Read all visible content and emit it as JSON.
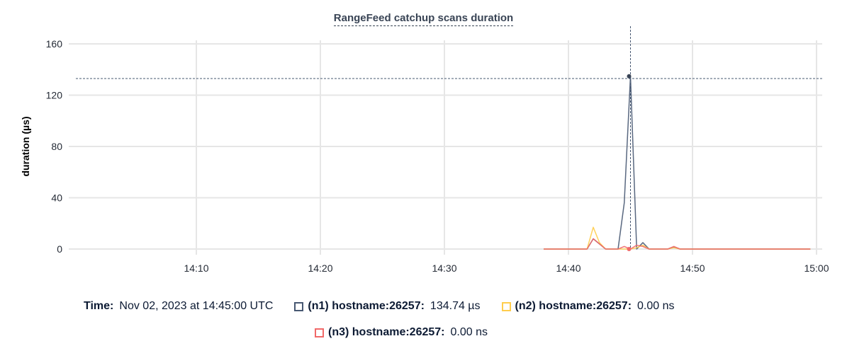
{
  "chart_data": {
    "type": "line",
    "title": "RangeFeed catchup scans duration",
    "ylabel": "duration (µs)",
    "xlabel": "",
    "xlim": [
      "14:00",
      "15:00"
    ],
    "ylim": [
      0,
      160
    ],
    "yticks": [
      "0",
      "40",
      "80",
      "120",
      "160"
    ],
    "xticks": [
      "14:10",
      "14:20",
      "14:30",
      "14:40",
      "14:50",
      "15:00"
    ],
    "grid": true,
    "x": [
      "14:38:00",
      "14:38:30",
      "14:39:00",
      "14:39:30",
      "14:40:00",
      "14:40:30",
      "14:41:00",
      "14:41:30",
      "14:42:00",
      "14:42:30",
      "14:43:00",
      "14:43:30",
      "14:44:00",
      "14:44:30",
      "14:45:00",
      "14:45:30",
      "14:46:00",
      "14:46:30",
      "14:47:00",
      "14:47:30",
      "14:48:00",
      "14:48:30",
      "14:49:00",
      "14:49:30",
      "14:50:00",
      "14:50:30",
      "14:51:00",
      "14:51:30",
      "14:52:00",
      "14:52:30",
      "14:53:00",
      "14:53:30",
      "14:54:00",
      "14:54:30",
      "14:55:00",
      "14:55:30",
      "14:56:00",
      "14:56:30",
      "14:57:00",
      "14:57:30",
      "14:58:00",
      "14:58:30",
      "14:59:00",
      "14:59:30"
    ],
    "series": [
      {
        "name": "(n1) hostname:26257",
        "color": "#475872",
        "values": [
          0,
          0,
          0,
          0,
          0,
          0,
          0,
          0,
          8,
          4,
          0,
          0,
          0,
          36,
          134.74,
          0,
          5,
          0,
          0,
          0,
          0,
          1.5,
          0,
          0,
          0,
          0,
          0,
          0,
          0,
          0,
          0,
          0,
          0,
          0,
          0,
          0,
          0,
          0,
          0,
          0,
          0,
          0,
          0,
          0
        ]
      },
      {
        "name": "(n2) hostname:26257",
        "color": "#ffcd4d",
        "values": [
          0,
          0,
          0,
          0,
          0,
          0,
          0,
          0,
          17,
          5,
          0,
          0,
          0,
          0,
          0,
          1,
          3,
          0,
          0,
          0,
          0,
          1,
          0,
          0,
          0,
          0,
          0,
          0,
          0,
          0,
          0,
          0,
          0,
          0,
          0,
          0,
          0,
          0,
          0,
          0,
          0,
          0,
          0,
          0
        ]
      },
      {
        "name": "(n3) hostname:26257",
        "color": "#f16969",
        "values": [
          0,
          0,
          0,
          0,
          0,
          0,
          0,
          0,
          8,
          4,
          0,
          0,
          0,
          2,
          0,
          3,
          2,
          0,
          0,
          0,
          0,
          2,
          0,
          0,
          0,
          0,
          0,
          0,
          0,
          0,
          0,
          0,
          0,
          0,
          0,
          0,
          0,
          0,
          0,
          0,
          0,
          0,
          0,
          0
        ]
      }
    ],
    "hover": {
      "x": "14:45:00",
      "y": 133
    }
  },
  "legend": {
    "time_label": "Time:",
    "time_value": "Nov 02, 2023 at 14:45:00 UTC",
    "items": [
      {
        "label": "(n1) hostname:26257:",
        "value": "134.74 µs",
        "color": "#475872"
      },
      {
        "label": "(n2) hostname:26257:",
        "value": "0.00 ns",
        "color": "#ffcd4d"
      },
      {
        "label": "(n3) hostname:26257:",
        "value": "0.00 ns",
        "color": "#f16969"
      }
    ]
  }
}
